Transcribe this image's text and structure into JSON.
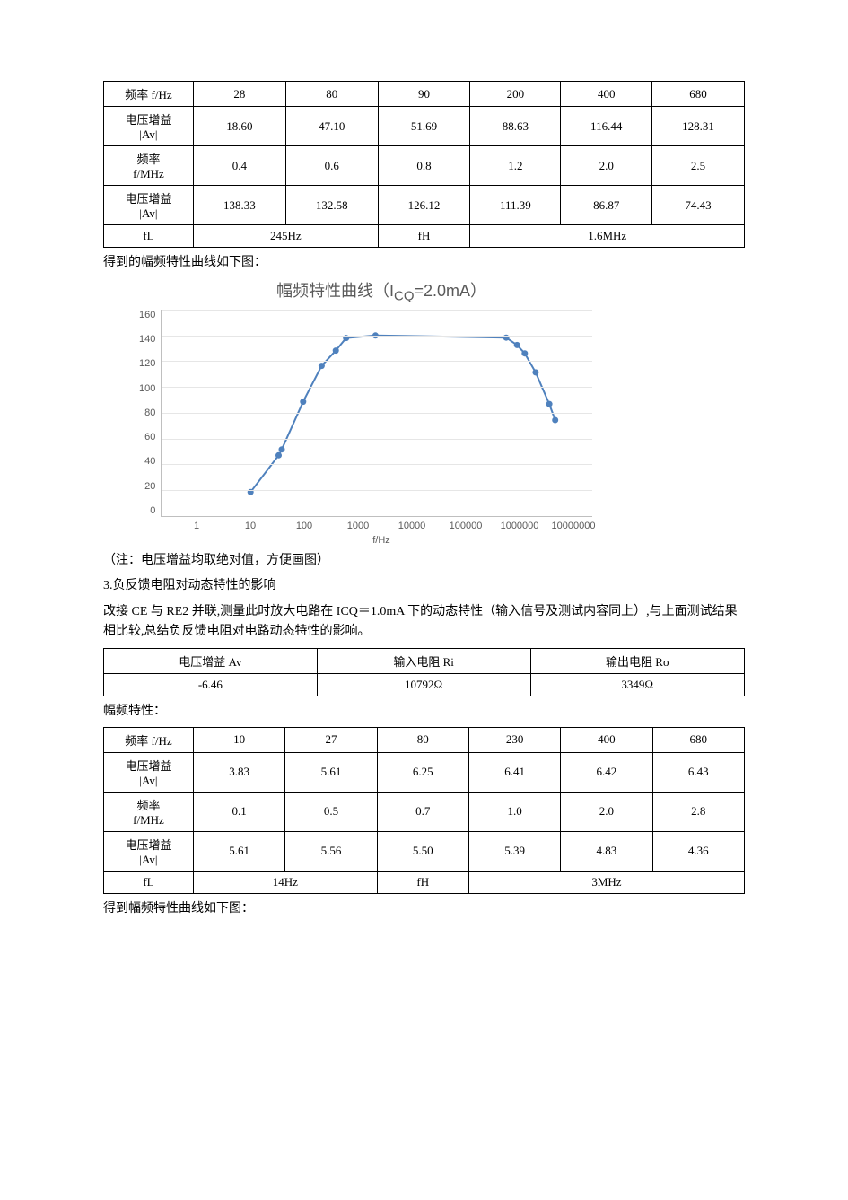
{
  "table1": {
    "row1_label": "频率 f/Hz",
    "row1": [
      "28",
      "80",
      "90",
      "200",
      "400",
      "680"
    ],
    "row2_label1": "电压增益",
    "row2_label2": "|Av|",
    "row2": [
      "18.60",
      "47.10",
      "51.69",
      "88.63",
      "116.44",
      "128.31"
    ],
    "row3_label1": "频率",
    "row3_label2": "f/MHz",
    "row3": [
      "0.4",
      "0.6",
      "0.8",
      "1.2",
      "2.0",
      "2.5"
    ],
    "row4_label1": "电压增益",
    "row4_label2": "|Av|",
    "row4": [
      "138.33",
      "132.58",
      "126.12",
      "111.39",
      "86.87",
      "74.43"
    ],
    "fL_label": "fL",
    "fL_val": "245Hz",
    "fH_label": "fH",
    "fH_val": "1.6MHz"
  },
  "text1": "得到的幅频特性曲线如下图：",
  "chart1": {
    "title_pre": "幅频特性曲线（I",
    "title_sub": "CQ",
    "title_post": "=2.0mA）",
    "ylim": [
      0,
      160
    ],
    "ytick_step": 20,
    "yticks": [
      "160",
      "140",
      "120",
      "100",
      "80",
      "60",
      "40",
      "20",
      "0"
    ],
    "xticks": [
      "1",
      "10",
      "100",
      "1000",
      "10000",
      "100000",
      "1000000",
      "10000000"
    ],
    "xlabel": "f/Hz",
    "line_color": "#4f81bd",
    "marker_color": "#4f81bd",
    "grid_color": "#e6e6e6",
    "background": "#ffffff",
    "tick_font_color": "#595959",
    "points": [
      {
        "x": 28,
        "y": 18.6
      },
      {
        "x": 80,
        "y": 47.1
      },
      {
        "x": 90,
        "y": 51.69
      },
      {
        "x": 200,
        "y": 88.63
      },
      {
        "x": 400,
        "y": 116.44
      },
      {
        "x": 680,
        "y": 128.31
      },
      {
        "x": 1000,
        "y": 138
      },
      {
        "x": 3000,
        "y": 140
      },
      {
        "x": 400000,
        "y": 138.33
      },
      {
        "x": 600000,
        "y": 132.58
      },
      {
        "x": 800000,
        "y": 126.12
      },
      {
        "x": 1200000,
        "y": 111.39
      },
      {
        "x": 2000000,
        "y": 86.87
      },
      {
        "x": 2500000,
        "y": 74.43
      }
    ]
  },
  "text2": "（注：电压增益均取绝对值，方便画图）",
  "text3": "3.负反馈电阻对动态特性的影响",
  "text4": "改接 CE 与 RE2 并联,测量此时放大电路在 ICQ＝1.0mA 下的动态特性（输入信号及测试内容同上）,与上面测试结果相比较,总结负反馈电阻对电路动态特性的影响。",
  "table2": {
    "h1": "电压增益 Av",
    "h2": "输入电阻 Ri",
    "h3": "输出电阻 Ro",
    "v1": "-6.46",
    "v2": "10792Ω",
    "v3": "3349Ω"
  },
  "text5": "幅频特性：",
  "table3": {
    "row1_label": "频率 f/Hz",
    "row1": [
      "10",
      "27",
      "80",
      "230",
      "400",
      "680"
    ],
    "row2_label1": "电压增益",
    "row2_label2": "|Av|",
    "row2": [
      "3.83",
      "5.61",
      "6.25",
      "6.41",
      "6.42",
      "6.43"
    ],
    "row3_label1": "频率",
    "row3_label2": "f/MHz",
    "row3": [
      "0.1",
      "0.5",
      "0.7",
      "1.0",
      "2.0",
      "2.8"
    ],
    "row4_label1": "电压增益",
    "row4_label2": "|Av|",
    "row4": [
      "5.61",
      "5.56",
      "5.50",
      "5.39",
      "4.83",
      "4.36"
    ],
    "fL_label": "fL",
    "fL_val": "14Hz",
    "fH_label": "fH",
    "fH_val": "3MHz"
  },
  "text6": "得到幅频特性曲线如下图："
}
